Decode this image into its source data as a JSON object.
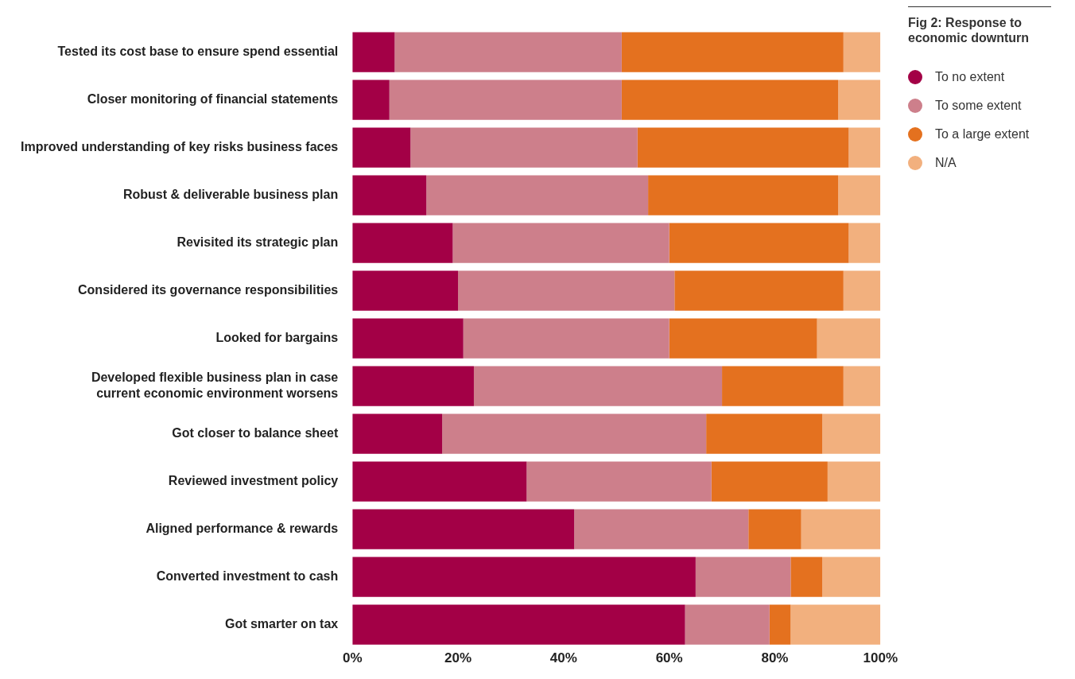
{
  "chart_data": {
    "type": "bar",
    "orientation": "horizontal",
    "stacked": true,
    "title": "Fig 2: Response to economic downturn",
    "categories": [
      "Tested its cost base to ensure spend essential",
      "Closer monitoring of financial statements",
      "Improved understanding of key risks business faces",
      "Robust & deliverable business plan",
      "Revisited its strategic plan",
      "Considered its governance responsibilities",
      "Looked for bargains",
      "Developed flexible business plan in case current economic environment worsens",
      "Got closer to balance sheet",
      "Reviewed investment policy",
      "Aligned performance & rewards",
      "Converted investment to cash",
      "Got smarter on tax"
    ],
    "series": [
      {
        "name": "To no extent",
        "color": "#a30046",
        "values": [
          8,
          7,
          11,
          14,
          19,
          20,
          21,
          23,
          17,
          33,
          42,
          65,
          63
        ]
      },
      {
        "name": "To some extent",
        "color": "#cd7f8b",
        "values": [
          43,
          44,
          43,
          42,
          41,
          41,
          39,
          47,
          50,
          35,
          33,
          18,
          16
        ]
      },
      {
        "name": "To a large extent",
        "color": "#e4711f",
        "values": [
          42,
          41,
          40,
          36,
          34,
          32,
          28,
          23,
          22,
          22,
          10,
          6,
          4
        ]
      },
      {
        "name": "N/A",
        "color": "#f2b07e",
        "values": [
          7,
          8,
          6,
          8,
          6,
          7,
          12,
          7,
          11,
          10,
          15,
          11,
          17
        ]
      }
    ],
    "xlim": [
      0,
      100
    ],
    "xticks": [
      {
        "value": 0,
        "label": "0%"
      },
      {
        "value": 20,
        "label": "20%"
      },
      {
        "value": 40,
        "label": "40%"
      },
      {
        "value": 60,
        "label": "60%"
      },
      {
        "value": 80,
        "label": "80%"
      },
      {
        "value": 100,
        "label": "100%"
      }
    ],
    "grid": false,
    "legend": "right"
  }
}
